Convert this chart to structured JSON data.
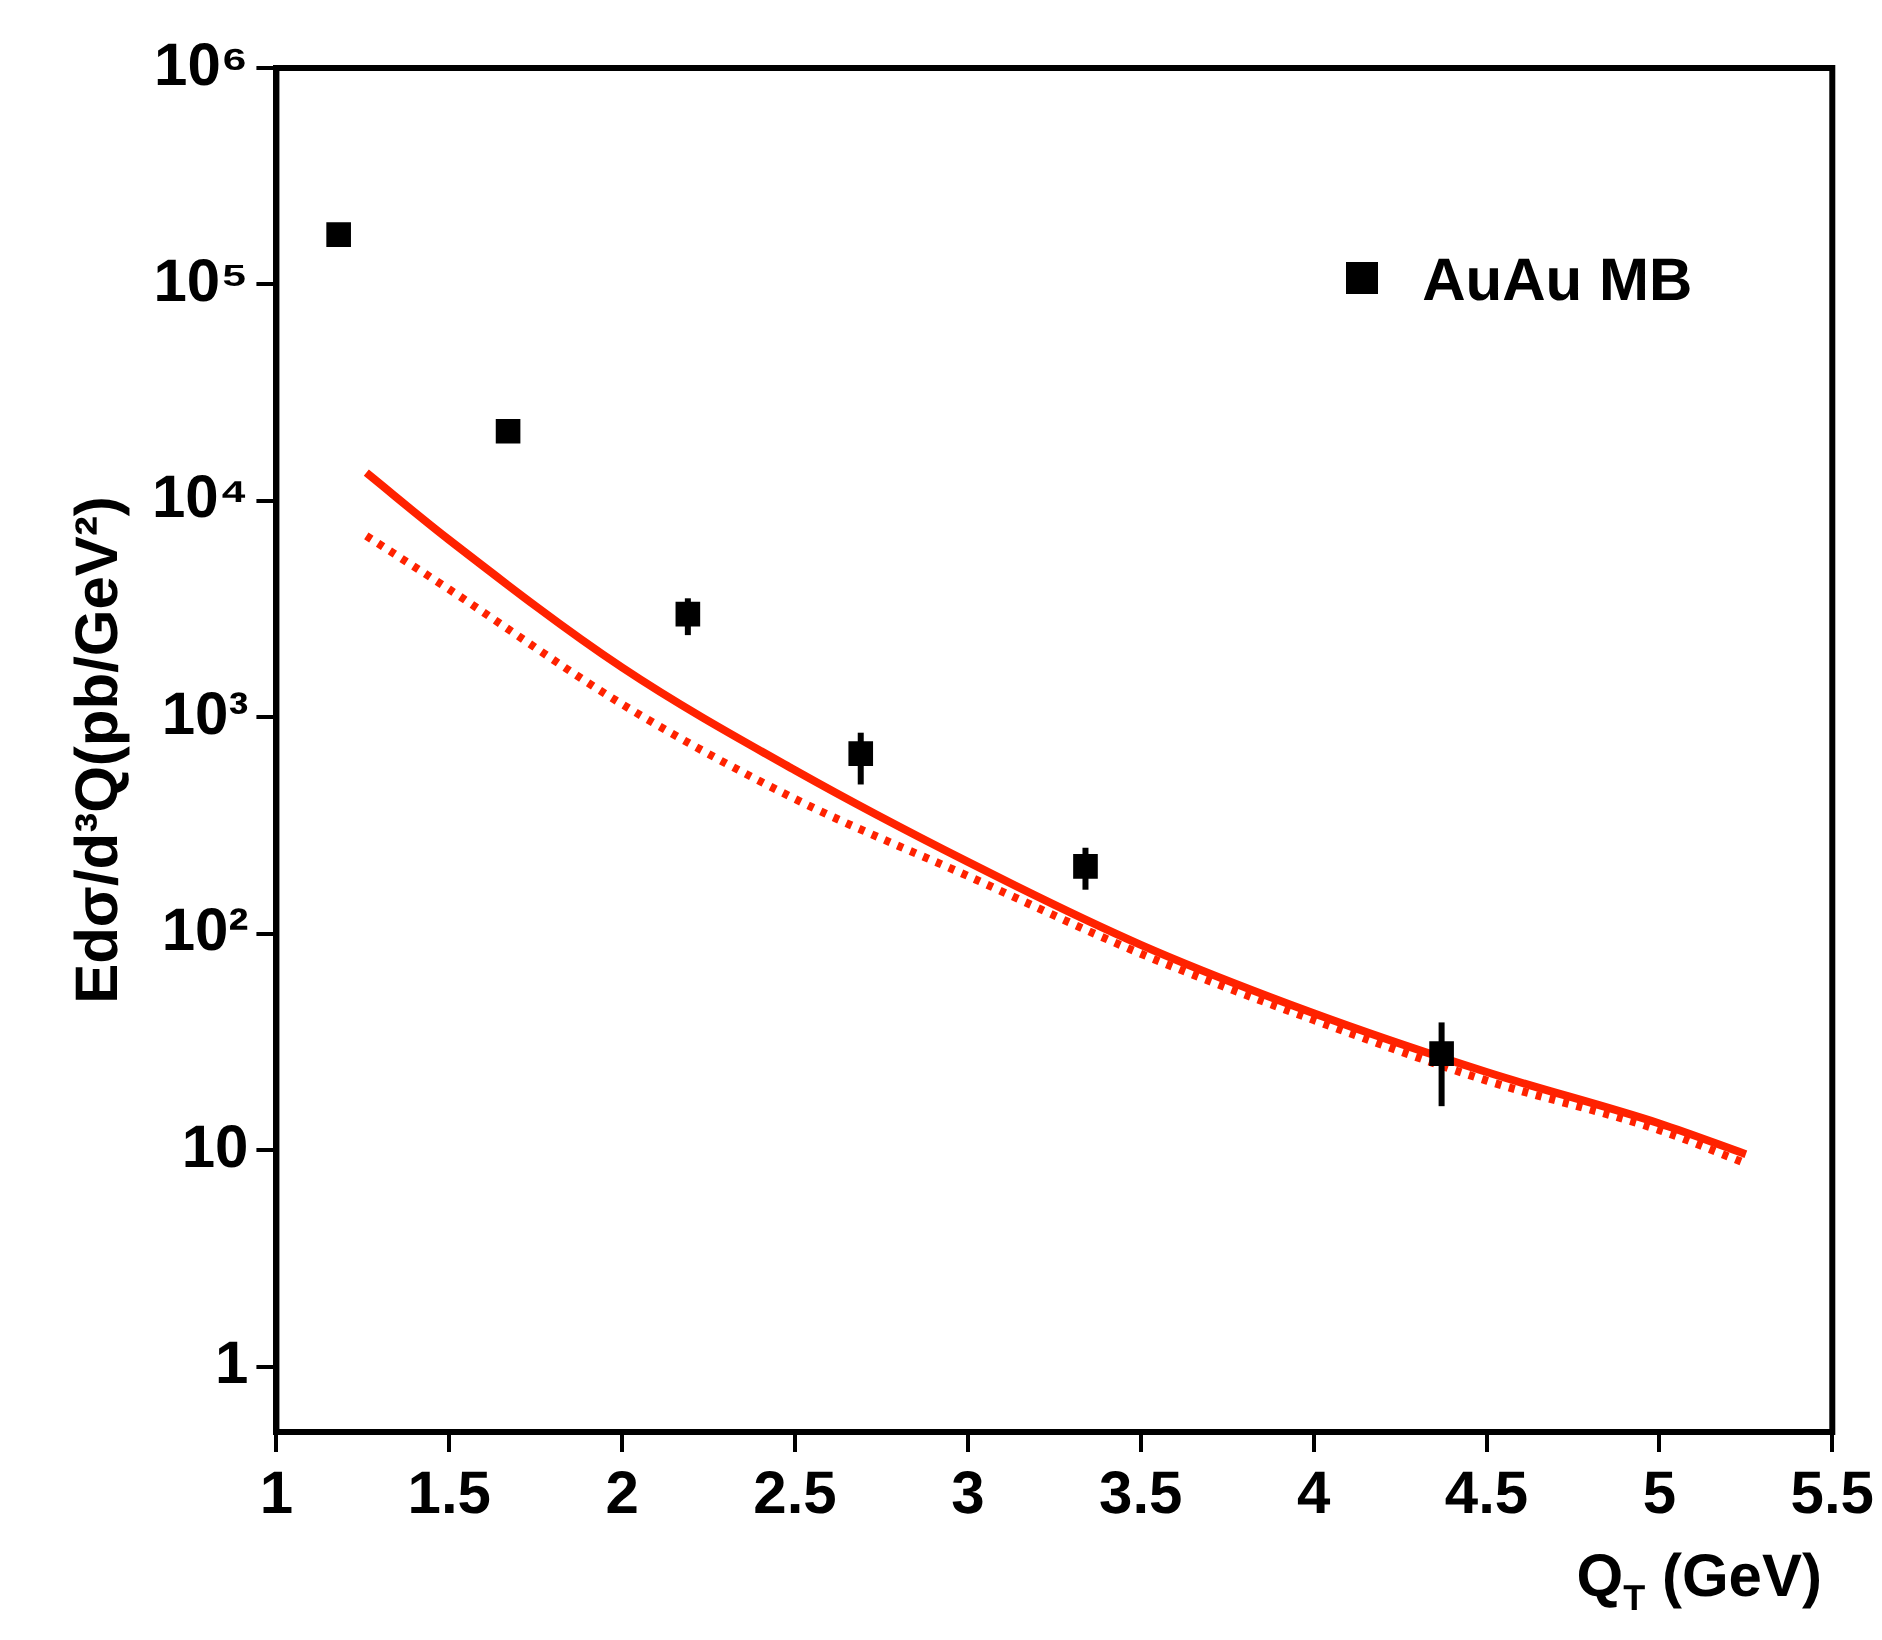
{
  "chart_data": {
    "type": "scatter",
    "xlabel": "Q$_{T}$ (GeV)",
    "ylabel": "Edσ/d³Q(pb/GeV²)",
    "log": "y",
    "grid": false,
    "legend": "top right",
    "xlim": [
      1,
      5.5
    ],
    "xticks": [
      1,
      1.5,
      2,
      2.5,
      3,
      3.5,
      4,
      4.5,
      5,
      5.5
    ],
    "ylim": [
      0.5,
      1000000
    ],
    "yticks": [
      1,
      10,
      {
        "value": 100,
        "label": "10²"
      },
      {
        "value": 1000,
        "label": "10³"
      },
      {
        "value": 10000,
        "label": "10⁴"
      },
      {
        "value": 100000,
        "label": "10⁵"
      },
      {
        "value": 1000000,
        "label": "10⁶"
      }
    ],
    "series": [
      {
        "name": "AuAu MB",
        "marker": "square",
        "color": "#000000",
        "x": [
          1.18,
          1.67,
          2.19,
          2.69,
          3.34,
          4.37
        ],
        "values": [
          170000,
          21000,
          3000,
          680,
          205,
          28
        ],
        "errors": [
          null,
          null,
          [
            2400,
            3550
          ],
          [
            490,
            850
          ],
          [
            160,
            250
          ],
          [
            16,
            39
          ]
        ]
      },
      {
        "type": "line",
        "marker": "none",
        "line_style": "solid",
        "color": "#ff2200",
        "x": [
          1.26,
          1.5,
          2,
          2.5,
          3,
          3.5,
          4,
          4.5,
          5,
          5.25
        ],
        "values": [
          13500,
          6600,
          1700,
          570,
          215,
          89,
          43,
          23,
          13.3,
          9.6
        ]
      },
      {
        "type": "line",
        "marker": "none",
        "line_style": "dotted",
        "color": "#ff2200",
        "x": [
          1.26,
          1.5,
          2,
          2.5,
          3,
          3.5,
          4,
          4.5,
          5,
          5.25
        ],
        "values": [
          6900,
          3900,
          1150,
          420,
          185,
          81,
          40,
          21,
          12.4,
          8.7
        ]
      }
    ]
  }
}
